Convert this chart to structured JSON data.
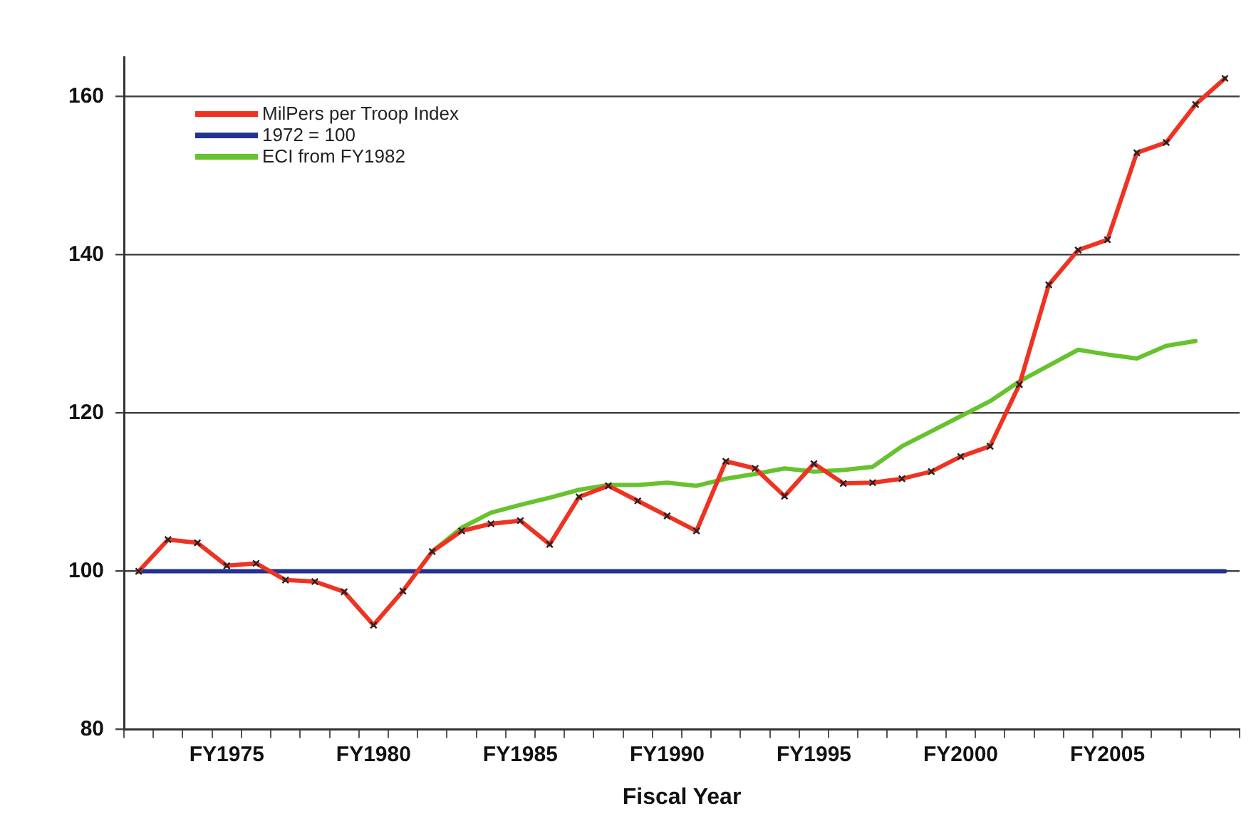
{
  "chart_data": {
    "type": "line",
    "xlabel": "Fiscal Year",
    "categories": [
      null,
      null,
      null,
      "FY1975",
      null,
      null,
      null,
      null,
      "FY1980",
      null,
      null,
      null,
      null,
      "FY1985",
      null,
      null,
      null,
      null,
      "FY1990",
      null,
      null,
      null,
      null,
      "FY1995",
      null,
      null,
      null,
      null,
      "FY2000",
      null,
      null,
      null,
      null,
      "FY2005",
      null,
      null,
      null,
      null
    ],
    "series": [
      {
        "name": "MilPers per Troop Index",
        "color": "#ee3322",
        "marker": "cross",
        "values": [
          100,
          104.0,
          103.6,
          100.7,
          101.0,
          98.9,
          98.7,
          97.4,
          93.2,
          97.5,
          102.5,
          105.1,
          106.0,
          106.4,
          103.4,
          109.4,
          110.8,
          108.9,
          107.0,
          105.1,
          113.9,
          113.0,
          109.5,
          113.6,
          111.1,
          111.2,
          111.7,
          112.6,
          114.5,
          115.8,
          123.6,
          136.2,
          140.6,
          141.9,
          152.9,
          154.2,
          159.0,
          162.3
        ]
      },
      {
        "name": "1972 = 100",
        "color": "#22338f",
        "values": [
          100,
          100,
          100,
          100,
          100,
          100,
          100,
          100,
          100,
          100,
          100,
          100,
          100,
          100,
          100,
          100,
          100,
          100,
          100,
          100,
          100,
          100,
          100,
          100,
          100,
          100,
          100,
          100,
          100,
          100,
          100,
          100,
          100,
          100,
          100,
          100,
          100,
          100
        ]
      },
      {
        "name": "ECI from FY1982",
        "color": "#66c22e",
        "values": [
          null,
          null,
          null,
          null,
          null,
          null,
          null,
          null,
          null,
          null,
          102.5,
          105.5,
          107.4,
          108.4,
          109.3,
          110.3,
          110.9,
          110.9,
          111.2,
          110.8,
          111.7,
          112.3,
          113.0,
          112.6,
          112.8,
          113.2,
          115.8,
          117.7,
          119.6,
          121.5,
          124.0,
          126.0,
          128.0,
          127.4,
          126.9,
          128.5,
          129.1,
          null
        ]
      }
    ],
    "ylim": [
      80,
      165
    ],
    "yticks": [
      80,
      100,
      120,
      140,
      160
    ],
    "grid": "y",
    "legend": "top left"
  }
}
